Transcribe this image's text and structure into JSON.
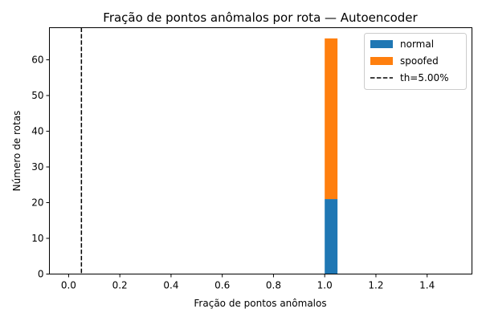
{
  "chart_data": {
    "type": "bar",
    "stacked": true,
    "title": "Fração de pontos anômalos por rota — Autoencoder",
    "xlabel": "Fração de pontos anômalos",
    "ylabel": "Número de rotas",
    "xlim": [
      -0.075,
      1.575
    ],
    "ylim": [
      0,
      69
    ],
    "xticks": [
      "0.0",
      "0.2",
      "0.4",
      "0.6",
      "0.8",
      "1.0",
      "1.2",
      "1.4"
    ],
    "yticks": [
      "0",
      "10",
      "20",
      "30",
      "40",
      "50",
      "60"
    ],
    "bins": [
      {
        "x0": 1.0,
        "x1": 1.05
      }
    ],
    "series": [
      {
        "name": "normal",
        "color": "#1f77b4",
        "values": [
          21
        ]
      },
      {
        "name": "spoofed",
        "color": "#ff7f0e",
        "values": [
          45
        ]
      }
    ],
    "threshold": {
      "label": "th=5.00%",
      "value": 0.05,
      "style": "dashed",
      "color": "#000000"
    },
    "legend": {
      "position": "top-right",
      "entries": [
        "normal",
        "spoofed",
        "th=5.00%"
      ]
    },
    "grid": false
  }
}
